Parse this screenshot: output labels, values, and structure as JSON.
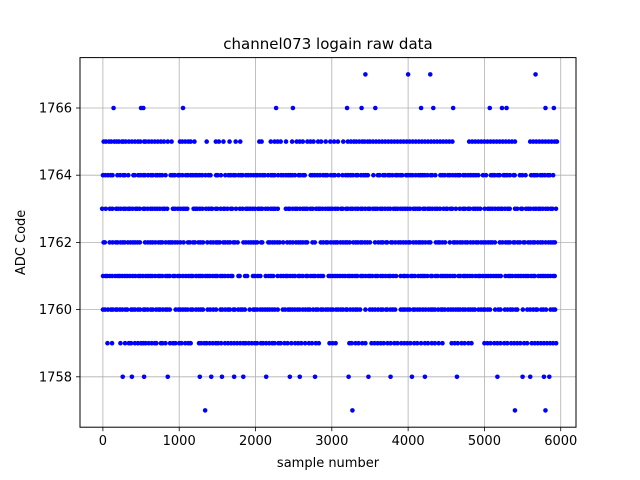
{
  "chart_data": {
    "type": "scatter",
    "title": "channel073 logain raw data",
    "xlabel": "sample number",
    "ylabel": "ADC Code",
    "xlim": [
      -300,
      6200
    ],
    "ylim": [
      1756.5,
      1767.5
    ],
    "xticks": [
      0,
      1000,
      2000,
      3000,
      4000,
      5000,
      6000
    ],
    "yticks": [
      1758,
      1760,
      1762,
      1764,
      1766
    ],
    "grid": true,
    "marker_color": "#0000ff",
    "dense_levels": [
      1760,
      1761,
      1762,
      1763,
      1764
    ],
    "dense_x_range": [
      0,
      5950
    ],
    "series": [
      {
        "values_by_level": {
          "1757": [
            1340,
            3270,
            5400,
            5800
          ],
          "1758": [
            260,
            380,
            540,
            850,
            1270,
            1420,
            1560,
            1720,
            1840,
            2140,
            2450,
            2580,
            2780,
            3220,
            3480,
            3770,
            4050,
            4220,
            4640,
            5170,
            5500,
            5600,
            5780,
            5850
          ],
          "1759": [
            60,
            120,
            230,
            290,
            340,
            370,
            420,
            460,
            500,
            530,
            560,
            600,
            640,
            680,
            700,
            760,
            780,
            820,
            880,
            920,
            950,
            1000,
            1030,
            1080,
            1120,
            1150,
            1260,
            1290,
            1330,
            1360,
            1400,
            1440,
            1480,
            1510,
            1550,
            1600,
            1640,
            1680,
            1720,
            1760,
            1800,
            1840,
            1870,
            1910,
            1950,
            1990,
            2020,
            2070,
            2100,
            2140,
            2180,
            2220,
            2250,
            2300,
            2330,
            2380,
            2420,
            2470,
            2520,
            2560,
            2600,
            2650,
            2700,
            2740,
            2790,
            2830,
            2970,
            3010,
            3050,
            3230,
            3260,
            3310,
            3350,
            3400,
            3440,
            3520,
            3560,
            3600,
            3640,
            3680,
            3730,
            3770,
            3820,
            3860,
            3910,
            3950,
            3990,
            4030,
            4080,
            4120,
            4170,
            4220,
            4260,
            4310,
            4350,
            4400,
            4450,
            4570,
            4610,
            4650,
            4700,
            4740,
            4790,
            4830,
            5000,
            5040,
            5080,
            5130,
            5170,
            5210,
            5260,
            5300,
            5350,
            5390,
            5430,
            5470,
            5520,
            5560,
            5620,
            5660,
            5700,
            5740,
            5780,
            5820,
            5860,
            5900,
            5940
          ],
          "1765": [
            10,
            40,
            80,
            110,
            150,
            180,
            210,
            250,
            270,
            300,
            340,
            380,
            420,
            460,
            490,
            540,
            560,
            600,
            640,
            680,
            720,
            760,
            800,
            850,
            900,
            1010,
            1040,
            1080,
            1120,
            1150,
            1200,
            1360,
            1480,
            1520,
            1580,
            1660,
            1740,
            1800,
            2050,
            2080,
            2200,
            2250,
            2290,
            2330,
            2400,
            2480,
            2540,
            2580,
            2620,
            2680,
            2720,
            2760,
            2820,
            2860,
            2920,
            2980,
            3030,
            3080,
            3150,
            3210,
            3250,
            3290,
            3320,
            3360,
            3400,
            3430,
            3470,
            3500,
            3540,
            3580,
            3620,
            3660,
            3700,
            3740,
            3780,
            3820,
            3860,
            3900,
            3940,
            3980,
            4020,
            4060,
            4100,
            4140,
            4180,
            4220,
            4260,
            4300,
            4340,
            4380,
            4420,
            4460,
            4500,
            4540,
            4580,
            4800,
            4840,
            4880,
            4920,
            4960,
            5000,
            5040,
            5080,
            5120,
            5160,
            5200,
            5240,
            5280,
            5320,
            5360,
            5400,
            5600,
            5640,
            5680,
            5720,
            5760,
            5800,
            5840,
            5880,
            5920,
            5950
          ],
          "1766": [
            140,
            500,
            530,
            1050,
            2270,
            2490,
            3200,
            3390,
            3570,
            4170,
            4330,
            4590,
            5070,
            5230,
            5290,
            5800,
            5910
          ],
          "1767": [
            3440,
            4000,
            4290,
            5670
          ]
        }
      }
    ]
  }
}
